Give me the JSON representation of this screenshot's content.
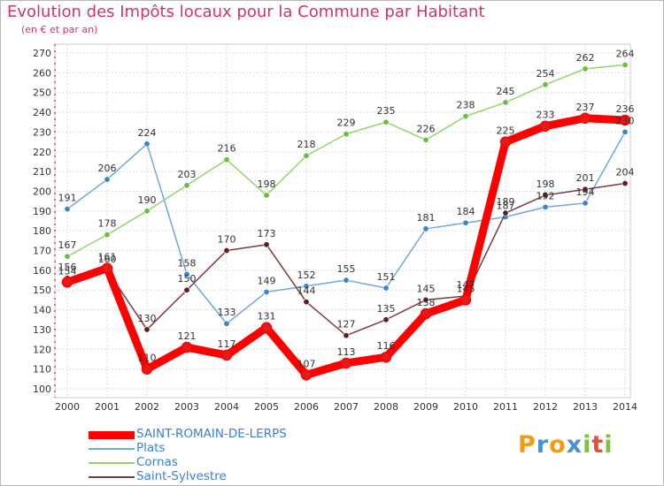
{
  "chart_data": {
    "type": "line",
    "title": "Evolution des Impôts locaux pour la Commune par Habitant",
    "subtitle": "(en € et par an)",
    "categories": [
      "2000",
      "2001",
      "2002",
      "2003",
      "2004",
      "2005",
      "2006",
      "2007",
      "2008",
      "2009",
      "2010",
      "2011",
      "2012",
      "2013",
      "2014"
    ],
    "ylim": [
      100,
      270
    ],
    "yticks": [
      100,
      110,
      120,
      130,
      140,
      150,
      160,
      170,
      180,
      190,
      200,
      210,
      220,
      230,
      240,
      250,
      260,
      270
    ],
    "grid": true,
    "series": [
      {
        "name": "SAINT-ROMAIN-DE-LERPS",
        "color": "#ff0000",
        "marker": "#e31b1b",
        "values": [
          154,
          161,
          110,
          121,
          117,
          131,
          107,
          113,
          116,
          138,
          145,
          225,
          233,
          237,
          236
        ]
      },
      {
        "name": "Plats",
        "color": "#6fa8dc",
        "marker": "#3d85c6",
        "values": [
          191,
          206,
          224,
          158,
          133,
          149,
          152,
          155,
          151,
          181,
          184,
          187,
          192,
          194,
          230
        ]
      },
      {
        "name": "Cornas",
        "color": "#93d56b",
        "marker": "#6abf3a",
        "values": [
          167,
          178,
          190,
          203,
          216,
          198,
          218,
          229,
          235,
          226,
          238,
          245,
          254,
          262,
          264
        ]
      },
      {
        "name": "Saint-Sylvestre",
        "color": "#7a3b3b",
        "marker": "#5c1e1e",
        "values": [
          156,
          160,
          130,
          150,
          170,
          173,
          144,
          127,
          135,
          145,
          147,
          189,
          198,
          201,
          204
        ]
      }
    ]
  },
  "legend": {
    "items": [
      {
        "label": "SAINT-ROMAIN-DE-LERPS"
      },
      {
        "label": "Plats"
      },
      {
        "label": "Cornas"
      },
      {
        "label": "Saint-Sylvestre"
      }
    ]
  },
  "logo": {
    "letters": [
      "P",
      "r",
      "o",
      "x",
      "i",
      "t",
      "i"
    ],
    "colors": [
      "#f39c12",
      "#4a90d9",
      "#f39c12",
      "#4a90d9",
      "#7fc241",
      "#e74c3c",
      "#7fc241"
    ]
  }
}
